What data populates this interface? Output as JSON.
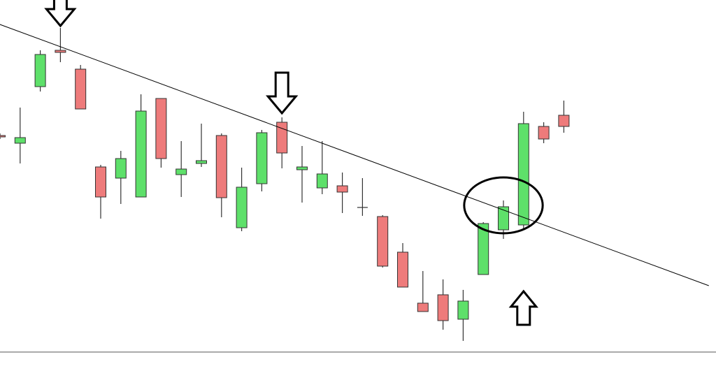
{
  "chart_data": {
    "type": "candlestick",
    "title": "",
    "xlabel": "",
    "ylabel": "",
    "ylim": [
      0,
      534
    ],
    "grid": false,
    "legend": "none",
    "candles": [
      {
        "o": 340,
        "c": 338,
        "h": 343,
        "l": 335
      },
      {
        "o": 329,
        "c": 337,
        "h": 380,
        "l": 300
      },
      {
        "o": 410,
        "c": 456,
        "h": 462,
        "l": 403
      },
      {
        "o": 462,
        "c": 459,
        "h": 494,
        "l": 445
      },
      {
        "o": 435,
        "c": 378,
        "h": 441,
        "l": 378
      },
      {
        "o": 295,
        "c": 252,
        "h": 298,
        "l": 221
      },
      {
        "o": 279,
        "c": 307,
        "h": 318,
        "l": 242
      },
      {
        "o": 252,
        "c": 375,
        "h": 399,
        "l": 252
      },
      {
        "o": 393,
        "c": 307,
        "h": 393,
        "l": 294
      },
      {
        "o": 284,
        "c": 292,
        "h": 332,
        "l": 252
      },
      {
        "o": 300,
        "c": 304,
        "h": 357,
        "l": 295
      },
      {
        "o": 340,
        "c": 251,
        "h": 343,
        "l": 223
      },
      {
        "o": 208,
        "c": 266,
        "h": 294,
        "l": 203
      },
      {
        "o": 271,
        "c": 344,
        "h": 348,
        "l": 260
      },
      {
        "o": 359,
        "c": 315,
        "h": 366,
        "l": 293
      },
      {
        "o": 291,
        "c": 295,
        "h": 325,
        "l": 244
      },
      {
        "o": 265,
        "c": 285,
        "h": 332,
        "l": 256
      },
      {
        "o": 268,
        "c": 259,
        "h": 287,
        "l": 229
      },
      {
        "o": 237,
        "c": 237,
        "h": 279,
        "l": 225
      },
      {
        "o": 224,
        "c": 153,
        "h": 226,
        "l": 151
      },
      {
        "o": 173,
        "c": 123,
        "h": 186,
        "l": 123
      },
      {
        "o": 100,
        "c": 88,
        "h": 146,
        "l": 88
      },
      {
        "o": 112,
        "c": 75,
        "h": 134,
        "l": 62
      },
      {
        "o": 77,
        "c": 103,
        "h": 119,
        "l": 46
      },
      {
        "o": 141,
        "c": 214,
        "h": 216,
        "l": 141
      },
      {
        "o": 205,
        "c": 238,
        "h": 247,
        "l": 192
      },
      {
        "o": 212,
        "c": 357,
        "h": 374,
        "l": 205
      },
      {
        "o": 353,
        "c": 335,
        "h": 359,
        "l": 329
      },
      {
        "o": 369,
        "c": 353,
        "h": 390,
        "l": 344
      }
    ],
    "colors": {
      "up": "#5ee06a",
      "down": "#ee7b7b",
      "outline": "#333333",
      "trendline": "#000000",
      "axis": "#555555"
    },
    "annotations": [
      {
        "type": "trendline",
        "from": {
          "i": -3.3,
          "v": 534
        },
        "to": {
          "i": 35.2,
          "v": 125
        }
      },
      {
        "type": "arrow-down",
        "at": {
          "i": 3,
          "v": 497
        }
      },
      {
        "type": "arrow-down",
        "at": {
          "i": 14,
          "v": 372
        }
      },
      {
        "type": "arrow-up",
        "at": {
          "i": 26,
          "v": 117
        }
      },
      {
        "type": "ellipse",
        "center": {
          "i": 25,
          "v": 240
        },
        "rx_candles": 1.95,
        "ry_value": 40
      }
    ]
  }
}
